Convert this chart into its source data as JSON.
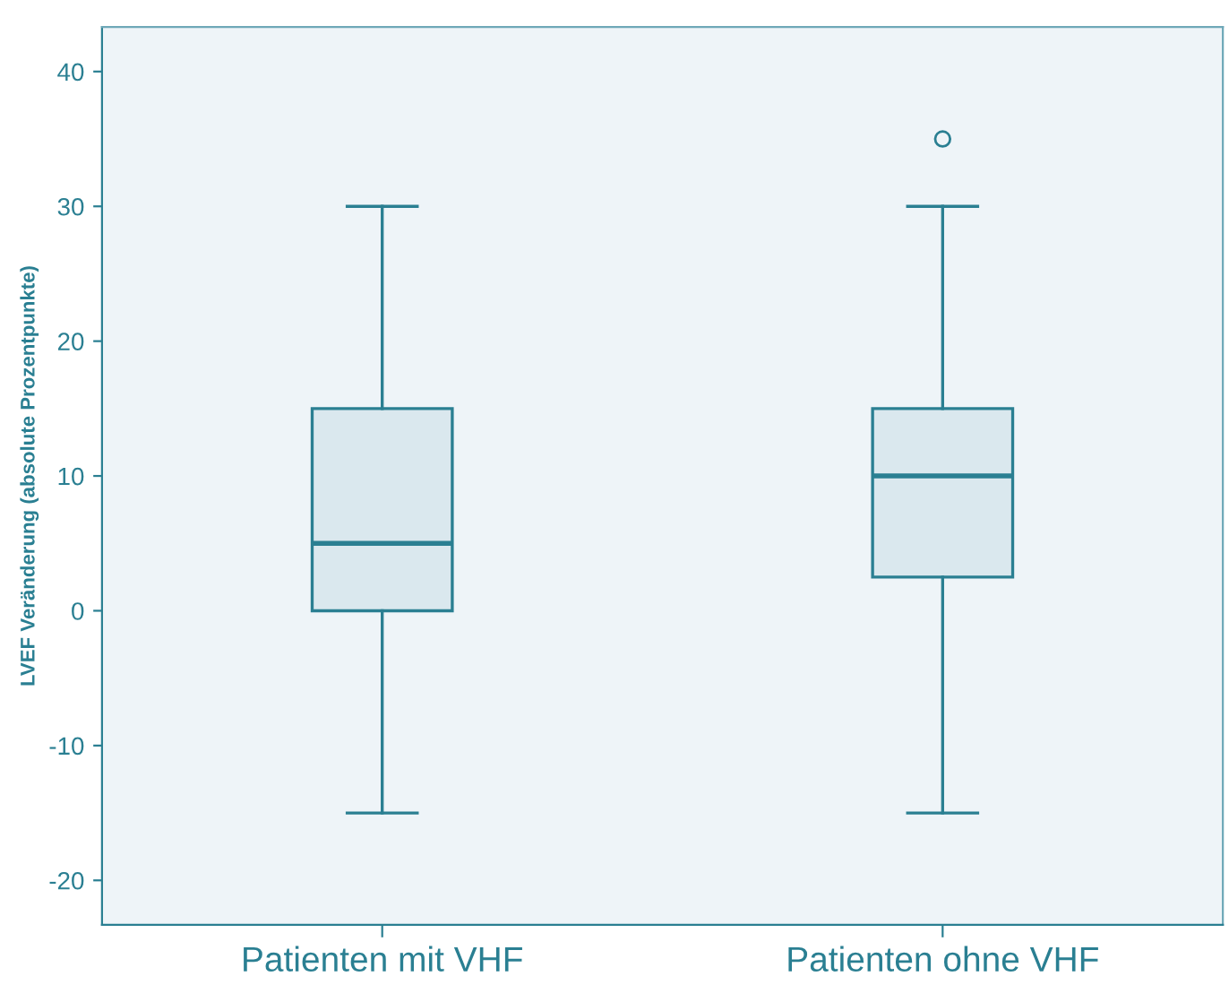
{
  "chart_data": {
    "type": "box",
    "ylabel": "LVEF Veränderung (absolute Prozentpunkte)",
    "categories": [
      "Patienten mit VHF",
      "Patienten ohne VHF"
    ],
    "boxes": [
      {
        "low": -15,
        "q1": 0,
        "median": 5,
        "q3": 15,
        "high": 30
      },
      {
        "low": -15,
        "q1": 2.5,
        "median": 10,
        "q3": 15,
        "high": 30,
        "outliers": [
          35
        ]
      }
    ],
    "color": "#2a7f92",
    "ylim": [
      -23.3,
      43.3
    ],
    "yticks": [
      -20,
      -10,
      0,
      10,
      20,
      30,
      40
    ],
    "grid": false
  }
}
